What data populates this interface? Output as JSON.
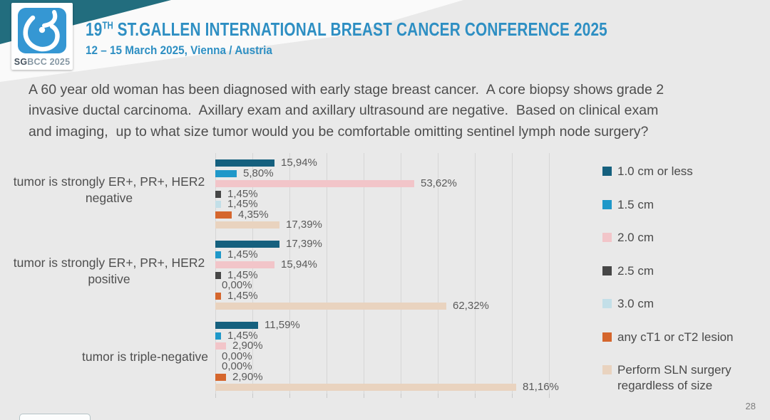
{
  "colors": {
    "teal_corner": "#226d7e",
    "logo_blue": "#3597d3",
    "title_blue": "#2e8fc3",
    "background": "#e9e9e9"
  },
  "header": {
    "logo_badge": {
      "sg": "SG",
      "bcc": "BCC",
      "year": " 2025"
    },
    "title_number": "19",
    "title_ordinal": "TH",
    "title_rest": " ST.GALLEN INTERNATIONAL BREAST CANCER CONFERENCE 2025",
    "subtitle": "12 – 15 March 2025, Vienna / Austria"
  },
  "question": {
    "lines": [
      "A 60 year old woman has been diagnosed with early stage breast cancer.  A core biopsy shows grade 2",
      "invasive ductal carcinoma.  Axillary exam and axillary ultrasound are negative.  Based on clinical exam",
      "and imaging,  up to what size tumor would you be comfortable omitting sentinel lymph node surgery?"
    ]
  },
  "chart_data": {
    "type": "bar",
    "orientation": "horizontal",
    "grid": true,
    "gridline_step_pct": 10,
    "xlim": [
      0,
      100
    ],
    "legend_position": "right",
    "value_format": "comma-decimal-percent",
    "categories": [
      {
        "lines": [
          "tumor is strongly ER+, PR+, HER2",
          "negative"
        ]
      },
      {
        "lines": [
          "tumor is strongly ER+, PR+, HER2",
          "positive"
        ]
      },
      {
        "lines": [
          "tumor is triple-negative"
        ]
      }
    ],
    "series": [
      {
        "name": "1.0 cm or less",
        "color": "#15607e",
        "values": [
          15.94,
          17.39,
          11.59
        ],
        "labels": [
          "15,94%",
          "17,39%",
          "11,59%"
        ]
      },
      {
        "name": "1.5 cm",
        "color": "#1f98c9",
        "values": [
          5.8,
          1.45,
          1.45
        ],
        "labels": [
          "5,80%",
          "1,45%",
          "1,45%"
        ]
      },
      {
        "name": "2.0 cm",
        "color": "#f2c5c9",
        "values": [
          53.62,
          15.94,
          2.9
        ],
        "labels": [
          "53,62%",
          "15,94%",
          "2,90%"
        ]
      },
      {
        "name": "2.5 cm",
        "color": "#464646",
        "values": [
          1.45,
          1.45,
          0.0
        ],
        "labels": [
          "1,45%",
          "1,45%",
          "0,00%"
        ]
      },
      {
        "name": "3.0 cm",
        "color": "#c3dfe8",
        "values": [
          1.45,
          0.0,
          0.0
        ],
        "labels": [
          "1,45%",
          "0,00%",
          "0,00%"
        ]
      },
      {
        "name": "any cT1 or cT2 lesion",
        "color": "#d5662d",
        "values": [
          4.35,
          1.45,
          2.9
        ],
        "labels": [
          "4,35%",
          "1,45%",
          "2,90%"
        ]
      },
      {
        "name": "Perform SLN surgery regardless of size",
        "color": "#e9d3bf",
        "values": [
          17.39,
          62.32,
          81.16
        ],
        "labels": [
          "17,39%",
          "62,32%",
          "81,16%"
        ]
      }
    ]
  },
  "slide": {
    "page_number": "28"
  }
}
